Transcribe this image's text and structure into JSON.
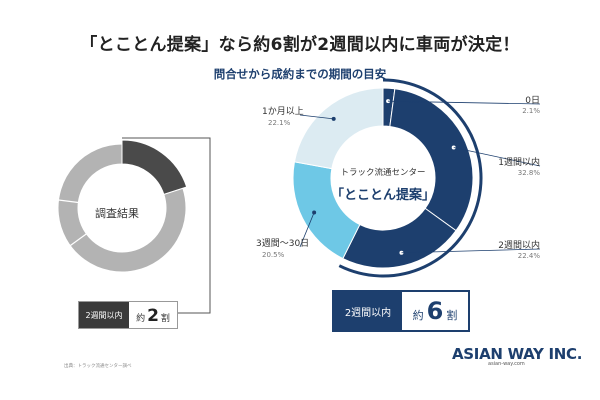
{
  "headline": "「とことん提案」なら約6割が2週間以内に車両が決定！",
  "chart_data": [
    {
      "type": "pie",
      "title": "",
      "center_label": "調査結果",
      "values": [
        20,
        80
      ],
      "callout": {
        "tag": "2週間以内",
        "prefix": "約",
        "value": "2",
        "suffix": "割"
      }
    },
    {
      "type": "pie",
      "title": "問合せから成約までの期間の目安",
      "center_label_small": "トラック流通センター",
      "center_label_big": "「とことん提案」",
      "categories": [
        "0日",
        "1週間以内",
        "2週間以内",
        "3週間〜30日",
        "1か月以上"
      ],
      "values": [
        2.1,
        32.8,
        22.4,
        20.5,
        22.1
      ],
      "value_labels": [
        "2.1%",
        "32.8%",
        "22.4%",
        "20.5%",
        "22.1%"
      ],
      "callout": {
        "tag": "2週間以内",
        "prefix": "約",
        "value": "6",
        "suffix": "割"
      }
    }
  ],
  "colors": {
    "navy": "#1d3f6e",
    "sky": "#6ec8e6",
    "pale": "#dcebf2",
    "gray": "#b3b3b3",
    "dark": "#4a4a4a"
  },
  "source_note": "出典：トラック流通センター調べ",
  "logo": {
    "word": "ASIAN WAY INC.",
    "url": "asian-way.com"
  }
}
